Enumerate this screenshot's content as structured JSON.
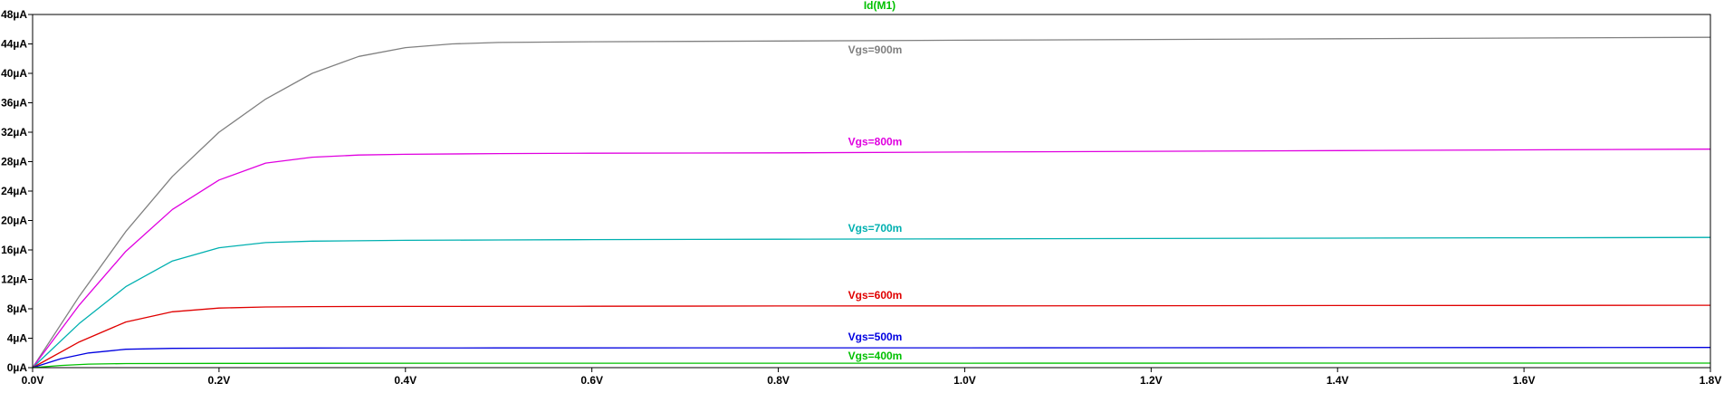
{
  "chart_data": {
    "type": "line",
    "title": "Id(M1)",
    "title_color": "#00c000",
    "xlabel": "",
    "ylabel": "",
    "xlim": [
      0,
      1.8
    ],
    "ylim": [
      0,
      48
    ],
    "grid": false,
    "x_ticks": [
      {
        "value": 0.0,
        "label": "0.0V"
      },
      {
        "value": 0.2,
        "label": "0.2V"
      },
      {
        "value": 0.4,
        "label": "0.4V"
      },
      {
        "value": 0.6,
        "label": "0.6V"
      },
      {
        "value": 0.8,
        "label": "0.8V"
      },
      {
        "value": 1.0,
        "label": "1.0V"
      },
      {
        "value": 1.2,
        "label": "1.2V"
      },
      {
        "value": 1.4,
        "label": "1.4V"
      },
      {
        "value": 1.6,
        "label": "1.6V"
      },
      {
        "value": 1.8,
        "label": "1.8V"
      }
    ],
    "y_ticks": [
      {
        "value": 0,
        "label": "0µA"
      },
      {
        "value": 4,
        "label": "4µA"
      },
      {
        "value": 8,
        "label": "8µA"
      },
      {
        "value": 12,
        "label": "12µA"
      },
      {
        "value": 16,
        "label": "16µA"
      },
      {
        "value": 20,
        "label": "20µA"
      },
      {
        "value": 24,
        "label": "24µA"
      },
      {
        "value": 28,
        "label": "28µA"
      },
      {
        "value": 32,
        "label": "32µA"
      },
      {
        "value": 36,
        "label": "36µA"
      },
      {
        "value": 40,
        "label": "40µA"
      },
      {
        "value": 44,
        "label": "44µA"
      },
      {
        "value": 48,
        "label": "48µA"
      }
    ],
    "series": [
      {
        "name": "Vgs=900m",
        "color": "#808080",
        "x": [
          0,
          0.05,
          0.1,
          0.15,
          0.2,
          0.25,
          0.3,
          0.35,
          0.4,
          0.45,
          0.5,
          0.6,
          0.8,
          1.0,
          1.2,
          1.4,
          1.6,
          1.8
        ],
        "y": [
          0,
          9.7,
          18.5,
          26.0,
          32.0,
          36.5,
          40.0,
          42.3,
          43.5,
          44.0,
          44.2,
          44.3,
          44.4,
          44.5,
          44.6,
          44.7,
          44.8,
          44.9
        ]
      },
      {
        "name": "Vgs=800m",
        "color": "#e000e0",
        "x": [
          0,
          0.05,
          0.1,
          0.15,
          0.2,
          0.25,
          0.3,
          0.35,
          0.4,
          0.5,
          0.6,
          0.8,
          1.0,
          1.2,
          1.4,
          1.6,
          1.8
        ],
        "y": [
          0,
          8.5,
          15.8,
          21.5,
          25.5,
          27.8,
          28.6,
          28.9,
          29.0,
          29.1,
          29.15,
          29.2,
          29.3,
          29.4,
          29.5,
          29.6,
          29.7
        ]
      },
      {
        "name": "Vgs=700m",
        "color": "#00b0b0",
        "x": [
          0,
          0.05,
          0.1,
          0.15,
          0.2,
          0.25,
          0.3,
          0.4,
          0.5,
          0.6,
          0.8,
          1.0,
          1.2,
          1.4,
          1.6,
          1.8
        ],
        "y": [
          0,
          6.0,
          11.0,
          14.5,
          16.3,
          17.0,
          17.2,
          17.3,
          17.35,
          17.4,
          17.45,
          17.5,
          17.55,
          17.6,
          17.65,
          17.7
        ]
      },
      {
        "name": "Vgs=600m",
        "color": "#e00000",
        "x": [
          0,
          0.05,
          0.1,
          0.15,
          0.2,
          0.25,
          0.3,
          0.4,
          0.6,
          0.8,
          1.0,
          1.2,
          1.4,
          1.6,
          1.8
        ],
        "y": [
          0,
          3.5,
          6.2,
          7.6,
          8.1,
          8.25,
          8.3,
          8.32,
          8.35,
          8.38,
          8.4,
          8.42,
          8.44,
          8.46,
          8.48
        ]
      },
      {
        "name": "Vgs=500m",
        "color": "#0000e0",
        "x": [
          0,
          0.03,
          0.06,
          0.1,
          0.15,
          0.2,
          0.3,
          0.5,
          0.8,
          1.0,
          1.2,
          1.4,
          1.6,
          1.8
        ],
        "y": [
          0,
          1.2,
          2.0,
          2.5,
          2.62,
          2.65,
          2.67,
          2.68,
          2.69,
          2.7,
          2.71,
          2.72,
          2.73,
          2.74
        ]
      },
      {
        "name": "Vgs=400m",
        "color": "#00c000",
        "x": [
          0,
          0.03,
          0.06,
          0.1,
          0.2,
          0.5,
          1.0,
          1.5,
          1.8
        ],
        "y": [
          0,
          0.3,
          0.48,
          0.55,
          0.58,
          0.6,
          0.6,
          0.61,
          0.62
        ]
      }
    ]
  }
}
